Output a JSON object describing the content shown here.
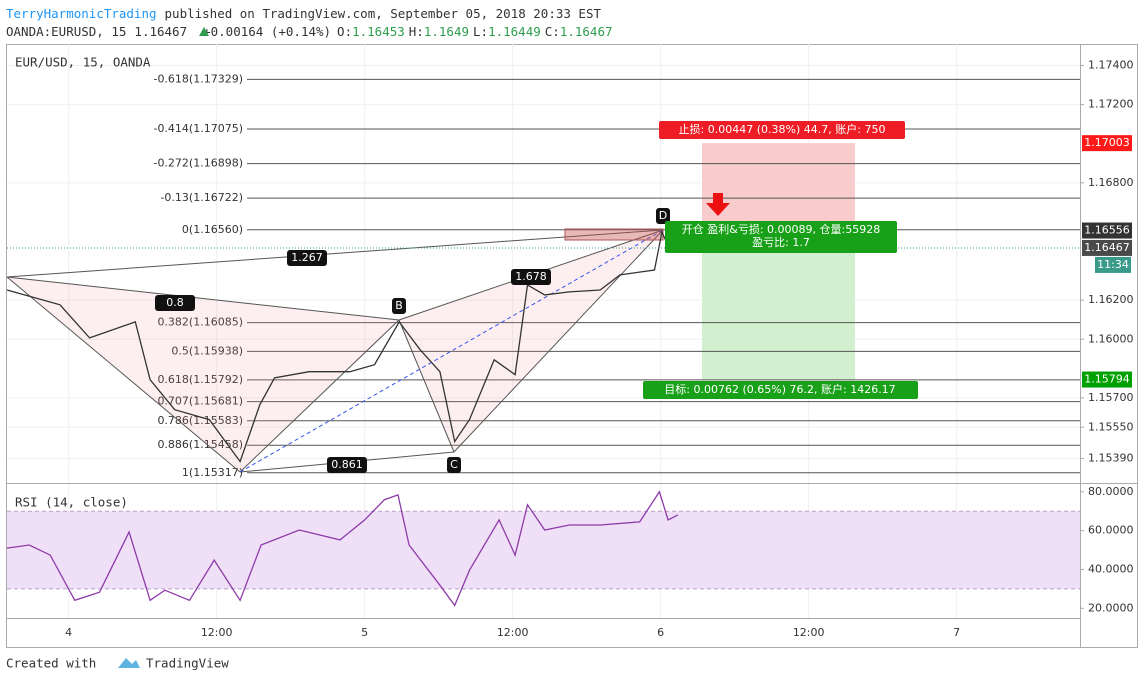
{
  "header": {
    "author": "TerryHarmonicTrading",
    "published": "published on TradingView.com, September 05, 2018 20:33 EST",
    "symbol": "OANDA:EURUSD, 15",
    "last": 1.16467,
    "change": "+0.00164 (+0.14%)",
    "ohlc": [
      {
        "key": "O:",
        "value": 1.16453
      },
      {
        "key": "H:",
        "value": 1.1649
      },
      {
        "key": "L:",
        "value": 1.16449
      },
      {
        "key": "C:",
        "value": 1.16467
      }
    ]
  },
  "chart_data": [
    {
      "type": "line",
      "title": "EUR/USD, 15, OANDA",
      "color": "#333333",
      "x": [
        -5,
        -0.7,
        1.7,
        5.4,
        6.6,
        8.6,
        11.4,
        13.9,
        15.5,
        16.7,
        19.5,
        22.8,
        24.8,
        26.8,
        28.5,
        30.1,
        31.3,
        32.5,
        34.5,
        36.2,
        37.2,
        38.6,
        40.6,
        43.1,
        44.7,
        47.5,
        48.1,
        48.7,
        49.4
      ],
      "values": [
        1.16252,
        1.16176,
        1.16007,
        1.16089,
        1.15793,
        1.1564,
        1.15589,
        1.15375,
        1.15665,
        1.15803,
        1.15834,
        1.15834,
        1.1587,
        1.16089,
        1.15946,
        1.15834,
        1.15477,
        1.15589,
        1.15895,
        1.15819,
        1.16278,
        1.16227,
        1.16242,
        1.16252,
        1.16329,
        1.16354,
        1.16548,
        1.16466,
        1.16446
      ],
      "xlim": [
        -5,
        82
      ],
      "ylim": [
        1.1527,
        1.1751
      ],
      "xticks": [
        {
          "value": 0,
          "label": "4"
        },
        {
          "value": 12,
          "label": "12:00"
        },
        {
          "value": 24,
          "label": "5"
        },
        {
          "value": 36,
          "label": "12:00"
        },
        {
          "value": 48,
          "label": "6"
        },
        {
          "value": 60,
          "label": "12:00"
        },
        {
          "value": 72,
          "label": "7"
        }
      ],
      "yticks": [
        {
          "value": 1.174,
          "label": "1.17400"
        },
        {
          "value": 1.172,
          "label": "1.17200"
        },
        {
          "value": 1.168,
          "label": "1.16800"
        },
        {
          "value": 1.162,
          "label": "1.16200"
        },
        {
          "value": 1.16,
          "label": "1.16000"
        },
        {
          "value": 1.157,
          "label": "1.15700"
        },
        {
          "value": 1.1555,
          "label": "1.15550"
        },
        {
          "value": 1.1539,
          "label": "1.15390"
        }
      ],
      "grid": true,
      "fib_levels": [
        {
          "label": "-0.618(1.17329)",
          "price": 1.17329
        },
        {
          "label": "-0.414(1.17075)",
          "price": 1.17075
        },
        {
          "label": "-0.272(1.16898)",
          "price": 1.16898
        },
        {
          "label": "-0.13(1.16722)",
          "price": 1.16722
        },
        {
          "label": "0(1.16560)",
          "price": 1.1656
        },
        {
          "label": "0.382(1.16085)",
          "price": 1.16085
        },
        {
          "label": "0.5(1.15938)",
          "price": 1.15938
        },
        {
          "label": "0.618(1.15792)",
          "price": 1.15792
        },
        {
          "label": "0.707(1.15681)",
          "price": 1.15681
        },
        {
          "label": "0.786(1.15583)",
          "price": 1.15583
        },
        {
          "label": "0.886(1.15458)",
          "price": 1.15458
        },
        {
          "label": "1(1.15317)",
          "price": 1.15317
        }
      ],
      "price_tags": [
        {
          "value": 1.17003,
          "label": "1.17003",
          "color": "#ff1a1a"
        },
        {
          "value": 1.16556,
          "label": "1.16556",
          "color": "#333333"
        },
        {
          "value": 1.16467,
          "label": "1.16467",
          "color": "#4a4a4a"
        },
        {
          "label": "11:34",
          "color": "#3a9a8a"
        },
        {
          "value": 1.15794,
          "label": "1.15794",
          "color": "#00a000"
        }
      ]
    },
    {
      "type": "line",
      "title": "RSI (14, close)",
      "color": "#8e3ba8",
      "x": [
        -5,
        -3.2,
        -1.5,
        0.5,
        2.5,
        4.9,
        6.6,
        7.8,
        9.8,
        11.8,
        13.9,
        15.6,
        18.7,
        22,
        24,
        25.6,
        26.7,
        27.6,
        30.1,
        31.3,
        32.5,
        34.9,
        36.2,
        37.2,
        38.6,
        40.6,
        43.1,
        46.3,
        47.9,
        48.6,
        49.4
      ],
      "values": [
        51,
        52.6,
        47.4,
        24.1,
        28.3,
        59.3,
        24.1,
        29.3,
        24.1,
        44.8,
        24.1,
        52.6,
        60.3,
        55.2,
        65.5,
        75.9,
        78.4,
        52.6,
        31.9,
        21.5,
        39.6,
        65.5,
        47.4,
        73.3,
        60.3,
        62.9,
        62.9,
        64.5,
        80,
        65.5,
        68.1
      ],
      "xlim": [
        -5,
        82
      ],
      "ylim": [
        15,
        84
      ],
      "yticks": [
        {
          "value": 80,
          "label": "80.0000"
        },
        {
          "value": 60,
          "label": "60.0000"
        },
        {
          "value": 40,
          "label": "40.0000"
        },
        {
          "value": 20,
          "label": "20.0000"
        }
      ],
      "band": [
        30,
        70
      ],
      "band_color": "#efe0f8"
    }
  ],
  "pattern_labels": [
    "1.267",
    "0.8",
    "B",
    "1.678",
    "D",
    "C",
    "0.861"
  ],
  "position": {
    "stop_label": "止损: 0.00447 (0.38%) 44.7, 账户: 750",
    "open_label": "开仓 盈利&亏损: 0.00089, 仓量:55928",
    "ratio_label": "盈亏比: 1.7",
    "target_label": "目标: 0.00762 (0.65%) 76.2, 账户: 1426.17"
  },
  "footer": {
    "created": "Created with",
    "brand": "TradingView"
  }
}
